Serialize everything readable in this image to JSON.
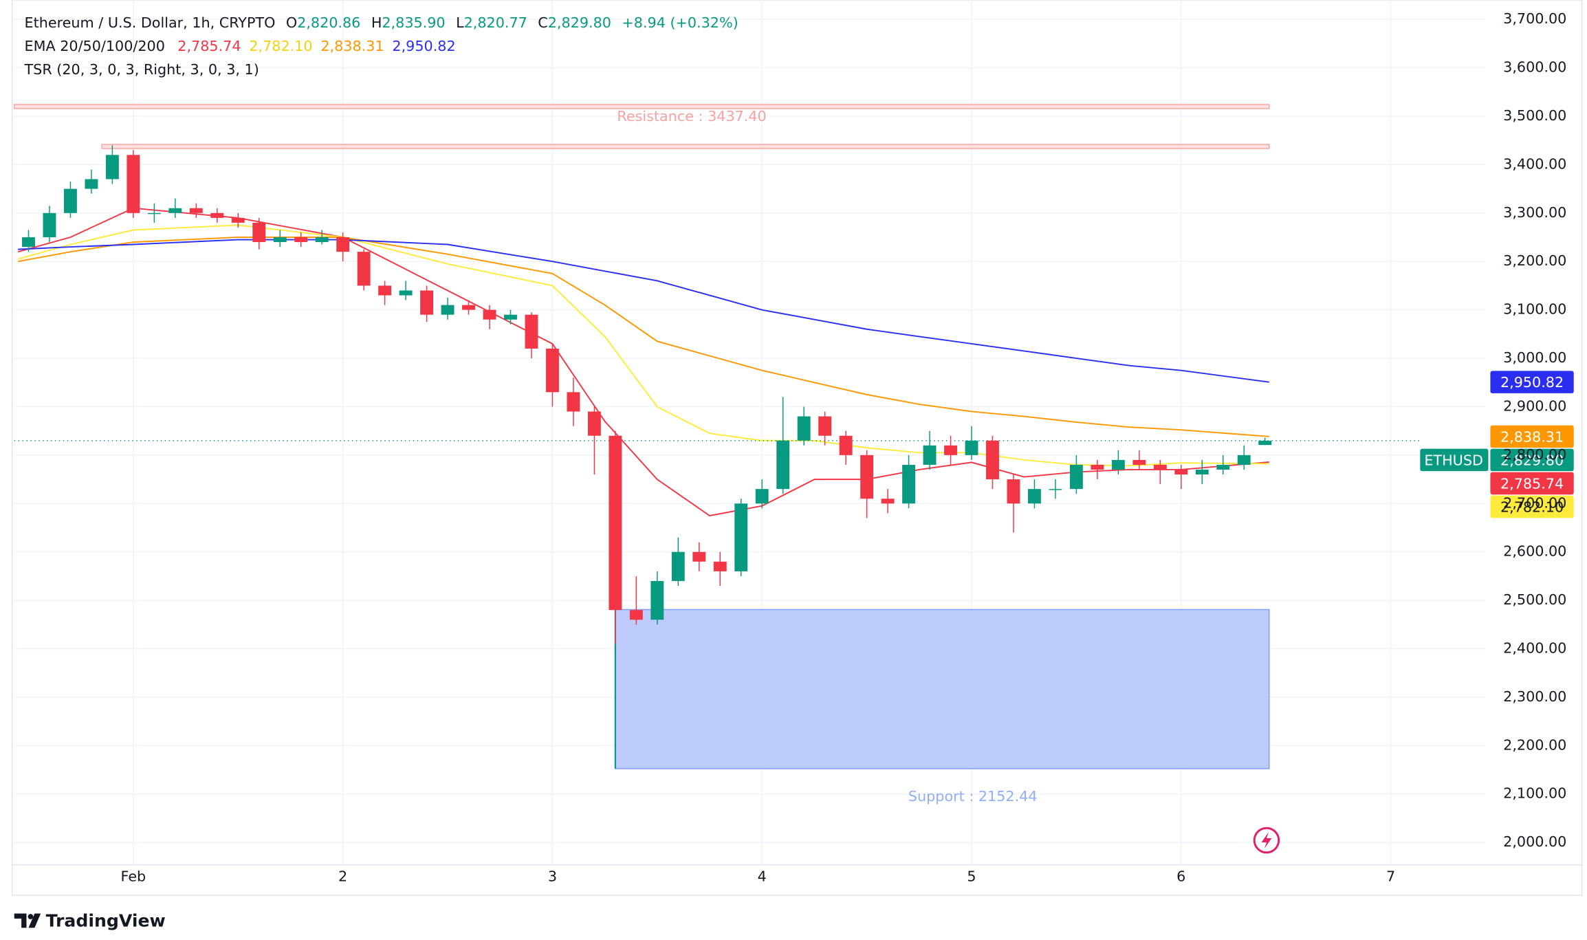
{
  "header": {
    "title": "Ethereum / U.S. Dollar, 1h, CRYPTO",
    "ohlc": [
      {
        "key": "O",
        "value": "2,820.86"
      },
      {
        "key": "H",
        "value": "2,835.90"
      },
      {
        "key": "L",
        "value": "2,820.77"
      },
      {
        "key": "C",
        "value": "2,829.80"
      }
    ],
    "change": "+8.94 (+0.32%)",
    "ema_name": "EMA 20/50/100/200",
    "tsr": "TSR (20, 3, 0, 3, Right, 3, 0, 3, 1)"
  },
  "chart_data": {
    "type": "candlestick",
    "symbol": "ETHUSD",
    "last_label": "2,829.80",
    "up_color": "#089981",
    "down_color": "#f23645",
    "x": [
      -0.5,
      -0.4,
      -0.3,
      -0.2,
      -0.1,
      0,
      0.1,
      0.2,
      0.3,
      0.4,
      0.5,
      0.6,
      0.7,
      0.8,
      0.9,
      1,
      1.1,
      1.2,
      1.3,
      1.4,
      1.5,
      1.6,
      1.7,
      1.8,
      1.9,
      2,
      2.1,
      2.2,
      2.3,
      2.4,
      2.5,
      2.6,
      2.7,
      2.8,
      2.9,
      3,
      3.1,
      3.2,
      3.3,
      3.4,
      3.5,
      3.6,
      3.7,
      3.8,
      3.9,
      4,
      4.1,
      4.2,
      4.3,
      4.4,
      4.5,
      4.6,
      4.7,
      4.8,
      4.9,
      5,
      5.1,
      5.2,
      5.3,
      5.4
    ],
    "open": [
      3230,
      3250,
      3300,
      3350,
      3370,
      3420,
      3300,
      3300,
      3310,
      3300,
      3290,
      3280,
      3240,
      3250,
      3240,
      3250,
      3220,
      3150,
      3130,
      3140,
      3090,
      3110,
      3100,
      3080,
      3090,
      3020,
      2930,
      2890,
      2840,
      2480,
      2460,
      2540,
      2600,
      2580,
      2560,
      2700,
      2730,
      2830,
      2880,
      2840,
      2800,
      2710,
      2700,
      2780,
      2820,
      2800,
      2830,
      2750,
      2700,
      2730,
      2730,
      2780,
      2770,
      2790,
      2780,
      2770,
      2760,
      2770,
      2780,
      2820.86
    ],
    "high": [
      3265,
      3315,
      3365,
      3390,
      3440,
      3430,
      3320,
      3330,
      3320,
      3310,
      3300,
      3290,
      3265,
      3260,
      3265,
      3260,
      3225,
      3160,
      3160,
      3150,
      3125,
      3120,
      3110,
      3100,
      3095,
      3030,
      2960,
      2900,
      2850,
      2550,
      2560,
      2630,
      2620,
      2600,
      2710,
      2750,
      2920,
      2900,
      2890,
      2850,
      2810,
      2730,
      2800,
      2850,
      2840,
      2860,
      2840,
      2760,
      2750,
      2750,
      2800,
      2790,
      2810,
      2810,
      2790,
      2780,
      2790,
      2800,
      2820,
      2835.9
    ],
    "low": [
      3220,
      3240,
      3290,
      3340,
      3360,
      3290,
      3280,
      3290,
      3290,
      3280,
      3270,
      3225,
      3230,
      3230,
      3235,
      3200,
      3140,
      3110,
      3120,
      3075,
      3080,
      3090,
      3060,
      3070,
      3000,
      2900,
      2860,
      2760,
      2410,
      2450,
      2450,
      2530,
      2560,
      2530,
      2550,
      2690,
      2720,
      2820,
      2820,
      2780,
      2670,
      2680,
      2690,
      2770,
      2780,
      2790,
      2730,
      2640,
      2690,
      2710,
      2720,
      2750,
      2760,
      2770,
      2740,
      2730,
      2740,
      2760,
      2770,
      2820.77
    ],
    "close": [
      3250,
      3300,
      3350,
      3370,
      3420,
      3300,
      3300,
      3310,
      3300,
      3290,
      3280,
      3240,
      3250,
      3240,
      3250,
      3220,
      3150,
      3130,
      3140,
      3090,
      3110,
      3100,
      3080,
      3090,
      3020,
      2930,
      2890,
      2840,
      2480,
      2460,
      2540,
      2600,
      2580,
      2560,
      2700,
      2730,
      2830,
      2880,
      2840,
      2800,
      2710,
      2700,
      2780,
      2820,
      2800,
      2830,
      2750,
      2700,
      2730,
      2730,
      2780,
      2770,
      2790,
      2780,
      2770,
      2760,
      2770,
      2780,
      2800,
      2829.8
    ],
    "series": [
      {
        "color": "#f23645",
        "label_color": "#ffffff",
        "last_label": "2,785.74",
        "x": [
          -0.55,
          -0.3,
          0,
          0.5,
          1,
          1.5,
          2,
          2.25,
          2.5,
          2.75,
          3,
          3.25,
          3.5,
          3.75,
          4,
          4.25,
          4.5,
          4.75,
          5,
          5.42
        ],
        "values": [
          3220,
          3250,
          3310,
          3290,
          3250,
          3140,
          3030,
          2870,
          2750,
          2675,
          2695,
          2750,
          2750,
          2770,
          2785,
          2755,
          2765,
          2770,
          2770,
          2785.74
        ]
      },
      {
        "color": "#ffeb3b",
        "label_color": "#131722",
        "text_color": "#f5d20a",
        "last_label": "2,782.10",
        "x": [
          -0.55,
          -0.3,
          0,
          0.5,
          1,
          1.5,
          2,
          2.25,
          2.5,
          2.75,
          3,
          3.25,
          3.5,
          3.75,
          4,
          4.25,
          4.5,
          4.75,
          5,
          5.42
        ],
        "values": [
          3205,
          3235,
          3265,
          3275,
          3250,
          3195,
          3150,
          3045,
          2900,
          2845,
          2830,
          2830,
          2815,
          2805,
          2805,
          2790,
          2780,
          2778,
          2784,
          2782.1
        ]
      },
      {
        "color": "#ff9800",
        "label_color": "#ffffff",
        "last_label": "2,838.31",
        "x": [
          -0.55,
          -0.3,
          0,
          0.5,
          1,
          1.5,
          2,
          2.25,
          2.5,
          2.75,
          3,
          3.25,
          3.5,
          3.75,
          4,
          4.25,
          4.5,
          4.75,
          5,
          5.42
        ],
        "values": [
          3200,
          3220,
          3240,
          3250,
          3250,
          3215,
          3175,
          3110,
          3035,
          3005,
          2975,
          2950,
          2925,
          2905,
          2890,
          2880,
          2868,
          2858,
          2852,
          2838.31
        ]
      },
      {
        "color": "#2a2ef0",
        "label_color": "#ffffff",
        "last_label": "2,950.82",
        "x": [
          -0.55,
          -0.3,
          0,
          0.5,
          1,
          1.5,
          2,
          2.25,
          2.5,
          2.75,
          3,
          3.25,
          3.5,
          3.75,
          4,
          4.25,
          4.5,
          4.75,
          5,
          5.42
        ],
        "values": [
          3225,
          3230,
          3235,
          3245,
          3245,
          3235,
          3200,
          3180,
          3160,
          3130,
          3100,
          3080,
          3060,
          3045,
          3030,
          3015,
          3000,
          2985,
          2975,
          2950.82
        ]
      }
    ],
    "resistance": [
      {
        "value": 3520,
        "x0": -0.568,
        "x1": 5.42
      },
      {
        "value": 3437.4,
        "x0": -0.15,
        "x1": 5.42,
        "label": "Resistance : 3437.40"
      }
    ],
    "support": {
      "top": 2481,
      "bottom": 2152.44,
      "x0": 2.3,
      "x1": 5.42,
      "label": "Support : 2152.44"
    },
    "xlim": [
      -0.568,
      6.451
    ],
    "ylim": [
      1954,
      3740
    ],
    "xticks": [
      {
        "value": 0,
        "label": "Feb"
      },
      {
        "value": 1,
        "label": "2"
      },
      {
        "value": 2,
        "label": "3"
      },
      {
        "value": 3,
        "label": "4"
      },
      {
        "value": 4,
        "label": "5"
      },
      {
        "value": 5,
        "label": "6"
      },
      {
        "value": 6,
        "label": "7"
      }
    ],
    "yticks": [
      {
        "value": 2000,
        "label": "2,000.00"
      },
      {
        "value": 2100,
        "label": "2,100.00"
      },
      {
        "value": 2200,
        "label": "2,200.00"
      },
      {
        "value": 2300,
        "label": "2,300.00"
      },
      {
        "value": 2400,
        "label": "2,400.00"
      },
      {
        "value": 2500,
        "label": "2,500.00"
      },
      {
        "value": 2600,
        "label": "2,600.00"
      },
      {
        "value": 2700,
        "label": "2,700.00"
      },
      {
        "value": 2800,
        "label": "2,800.00"
      },
      {
        "value": 2900,
        "label": "2,900.00"
      },
      {
        "value": 3000,
        "label": "3,000.00"
      },
      {
        "value": 3100,
        "label": "3,100.00"
      },
      {
        "value": 3200,
        "label": "3,200.00"
      },
      {
        "value": 3300,
        "label": "3,300.00"
      },
      {
        "value": 3400,
        "label": "3,400.00"
      },
      {
        "value": 3500,
        "label": "3,500.00"
      },
      {
        "value": 3600,
        "label": "3,600.00"
      },
      {
        "value": 3700,
        "label": "3,700.00"
      }
    ],
    "grid": true
  },
  "footer": {
    "brand": "TradingView"
  }
}
